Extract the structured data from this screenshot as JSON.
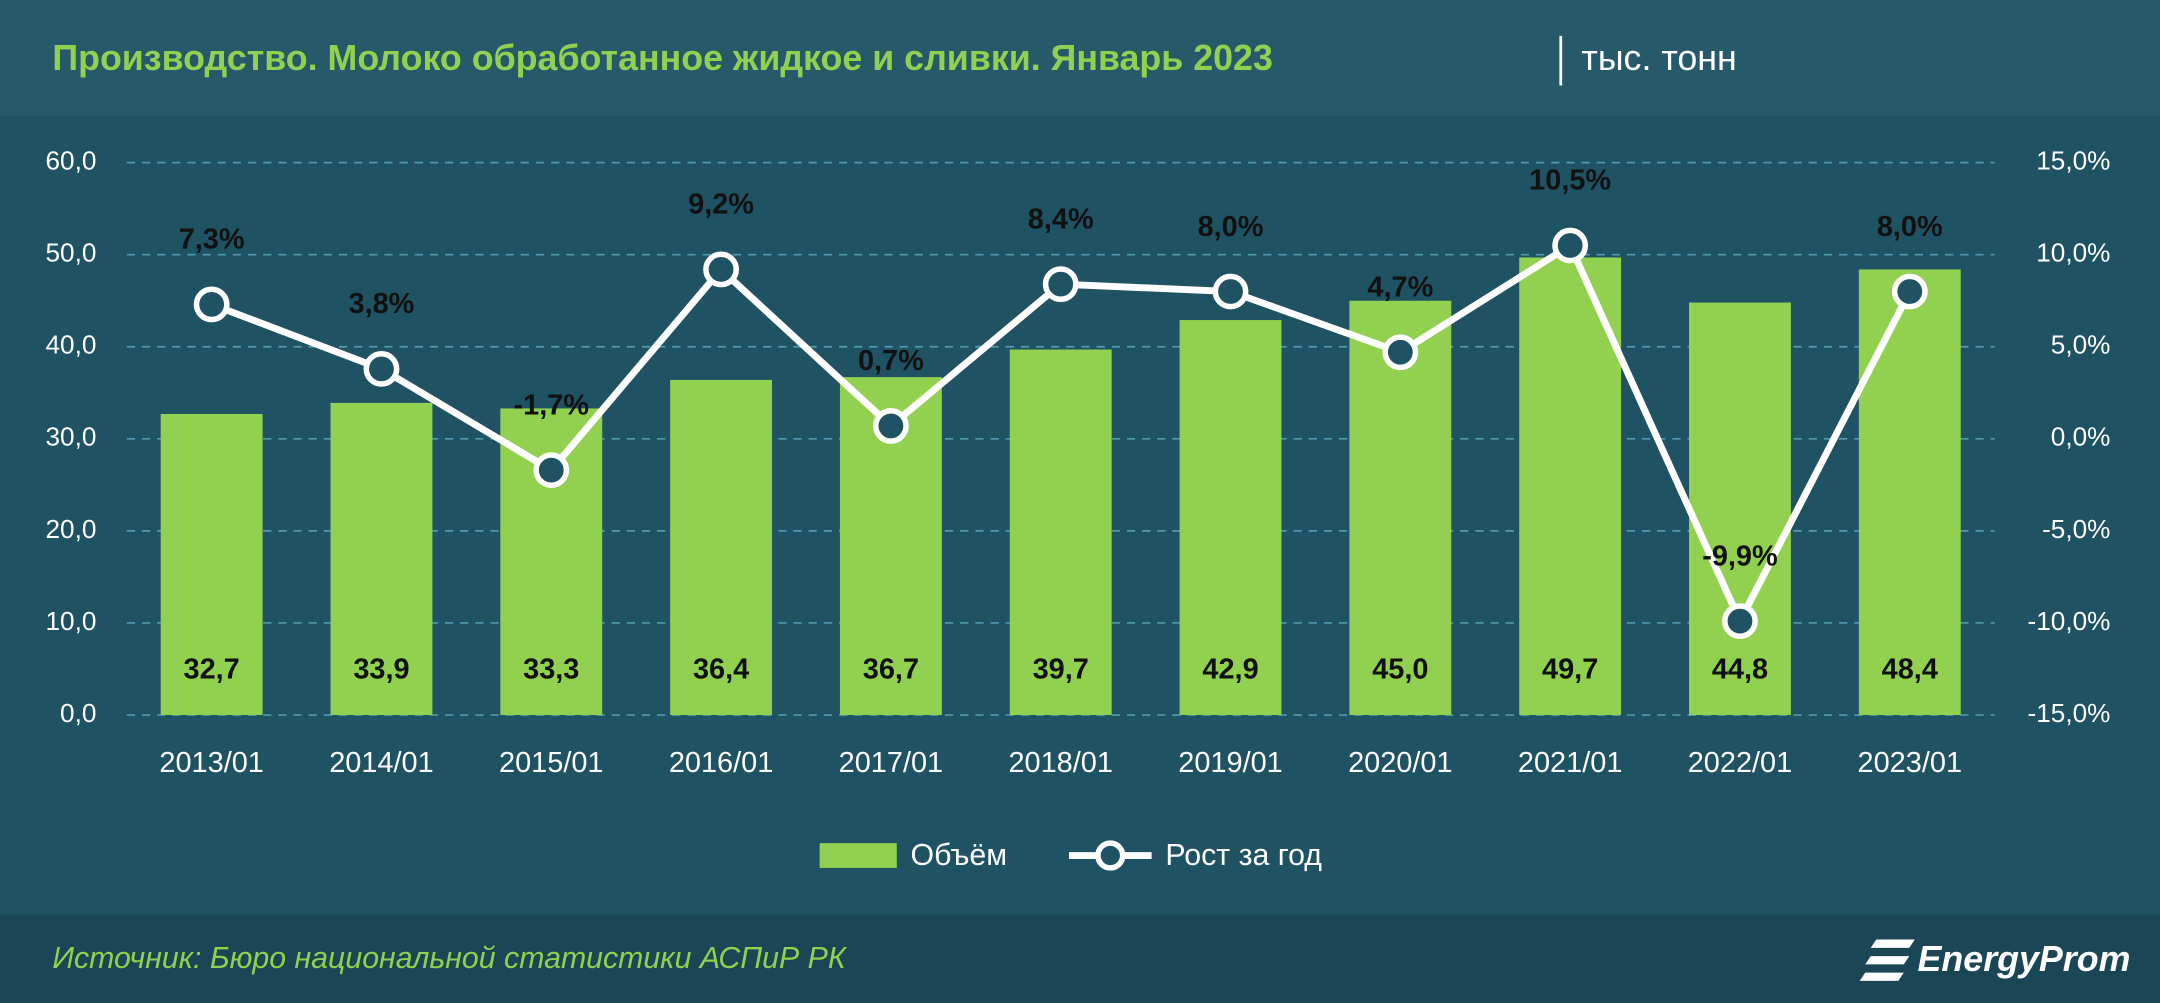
{
  "chart_data": {
    "type": "bar_line",
    "title": "Производство. Молоко обработанное жидкое и сливки. Январь 2023",
    "subtitle": "тыс. тонн",
    "source": "Источник: Бюро национальной статистики АСПиР РК",
    "logo": "EnergyProm",
    "categories": [
      "2013/01",
      "2014/01",
      "2015/01",
      "2016/01",
      "2017/01",
      "2018/01",
      "2019/01",
      "2020/01",
      "2021/01",
      "2022/01",
      "2023/01"
    ],
    "series": [
      {
        "name": "Объём",
        "type": "bar",
        "color": "#92d050",
        "values": [
          32.7,
          33.9,
          33.3,
          36.4,
          36.7,
          39.7,
          42.9,
          45.0,
          49.7,
          44.8,
          48.4
        ],
        "value_labels": [
          "32,7",
          "33,9",
          "33,3",
          "36,4",
          "36,7",
          "39,7",
          "42,9",
          "45,0",
          "49,7",
          "44,8",
          "48,4"
        ]
      },
      {
        "name": "Рост за год",
        "type": "line",
        "axis": "y2",
        "color": "#ffffff",
        "values": [
          7.3,
          3.8,
          -1.7,
          9.2,
          0.7,
          8.4,
          8.0,
          4.7,
          10.5,
          -9.9,
          8.0
        ],
        "value_labels": [
          "7,3%",
          "3,8%",
          "-1,7%",
          "9,2%",
          "0,7%",
          "8,4%",
          "8,0%",
          "4,7%",
          "10,5%",
          "-9,9%",
          "8,0%"
        ]
      }
    ],
    "ylim": [
      0,
      60
    ],
    "yticks": [
      {
        "value": 0,
        "label": "0,0"
      },
      {
        "value": 10,
        "label": "10,0"
      },
      {
        "value": 20,
        "label": "20,0"
      },
      {
        "value": 30,
        "label": "30,0"
      },
      {
        "value": 40,
        "label": "40,0"
      },
      {
        "value": 50,
        "label": "50,0"
      },
      {
        "value": 60,
        "label": "60,0"
      }
    ],
    "y2lim": [
      -15,
      15
    ],
    "y2ticks": [
      {
        "value": -15,
        "label": "-15,0%"
      },
      {
        "value": -10,
        "label": "-10,0%"
      },
      {
        "value": -5,
        "label": "-5,0%"
      },
      {
        "value": 0,
        "label": "0,0%"
      },
      {
        "value": 5,
        "label": "5,0%"
      },
      {
        "value": 10,
        "label": "10,0%"
      },
      {
        "value": 15,
        "label": "15,0%"
      }
    ],
    "grid": true
  }
}
